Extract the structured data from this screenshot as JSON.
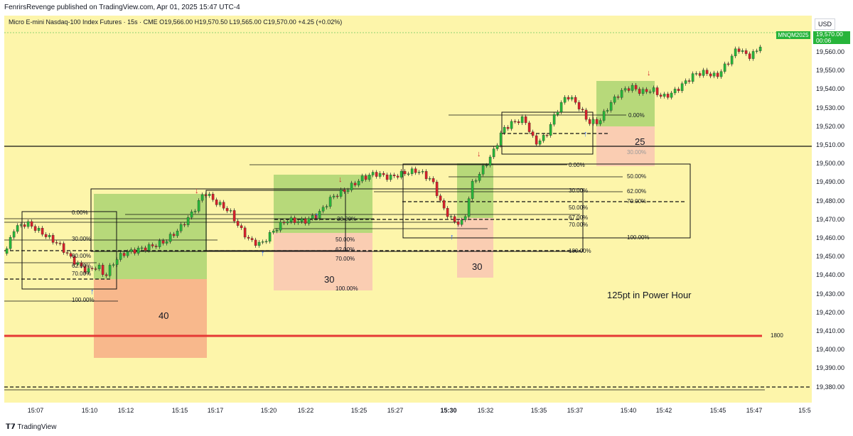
{
  "header": {
    "published": "FenrirsRevenge published on TradingView.com, Apr 01, 2025 15:47 UTC-4",
    "legend": "Micro E-mini Nasdaq-100 Index Futures · 15s · CME  O19,566.00  H19,570.50  L19,565.00  C19,570.00  +4.25 (+0.02%)"
  },
  "price_axis": {
    "currency": "USD",
    "labels": [
      "19,560.00",
      "19,550.00",
      "19,540.00",
      "19,530.00",
      "19,520.00",
      "19,510.00",
      "19,500.00",
      "19,490.00",
      "19,480.00",
      "19,470.00",
      "19,460.00",
      "19,450.00",
      "19,440.00",
      "19,430.00",
      "19,420.00",
      "19,410.00",
      "19,400.00",
      "19,390.00",
      "19,380.00"
    ],
    "last_price": "19,570.00",
    "countdown": "00:06",
    "symbol_tag": "MNQM2025",
    "line_label": "1800"
  },
  "time_axis": {
    "labels": [
      "15:07",
      "15:10",
      "15:12",
      "15:15",
      "15:17",
      "15:20",
      "15:22",
      "15:25",
      "15:27",
      "15:30",
      "15:32",
      "15:35",
      "15:37",
      "15:40",
      "15:42",
      "15:45",
      "15:47",
      "15:5"
    ],
    "bold_label": "15:30"
  },
  "annotations": {
    "box1_value": "40",
    "box2_value": "30",
    "box3_value": "30",
    "box4_value": "25",
    "note": "125pt in Power Hour"
  },
  "fib_levels": {
    "l0": "0.00%",
    "l30": "30.00%",
    "l50": "50.00%",
    "l62": "62.00%",
    "l67": "67.00%",
    "l70": "70.00%",
    "l100": "100.00%",
    "partial_60": "60.00%"
  },
  "footer": {
    "brand": "TradingView"
  },
  "colors": {
    "background": "#fdf5aa",
    "up": "#27b43a",
    "down": "#d4212b",
    "red_line": "#e53935"
  }
}
